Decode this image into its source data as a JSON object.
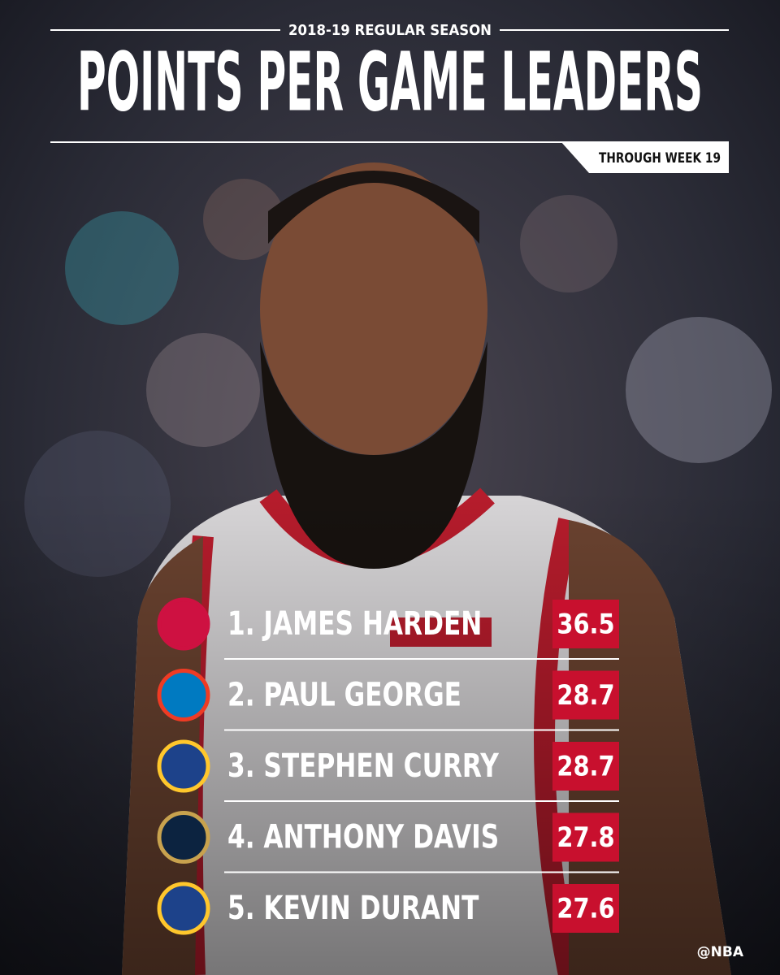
{
  "header": {
    "subtitle": "2018-19 REGULAR SEASON",
    "title": "POINTS PER GAME LEADERS",
    "tag": "THROUGH WEEK 19"
  },
  "leaders": [
    {
      "name": "1. JAMES HARDEN",
      "value": 36.5
    },
    {
      "name": "2. PAUL GEORGE",
      "value": 28.7
    },
    {
      "name": "3. STEPHEN CURRY",
      "value": 28.7
    },
    {
      "name": "4. ANTHONY DAVIS",
      "value": 27.8
    },
    {
      "name": "5. KEVIN DURANT",
      "value": 27.6
    }
  ],
  "footer": "@NBA"
}
